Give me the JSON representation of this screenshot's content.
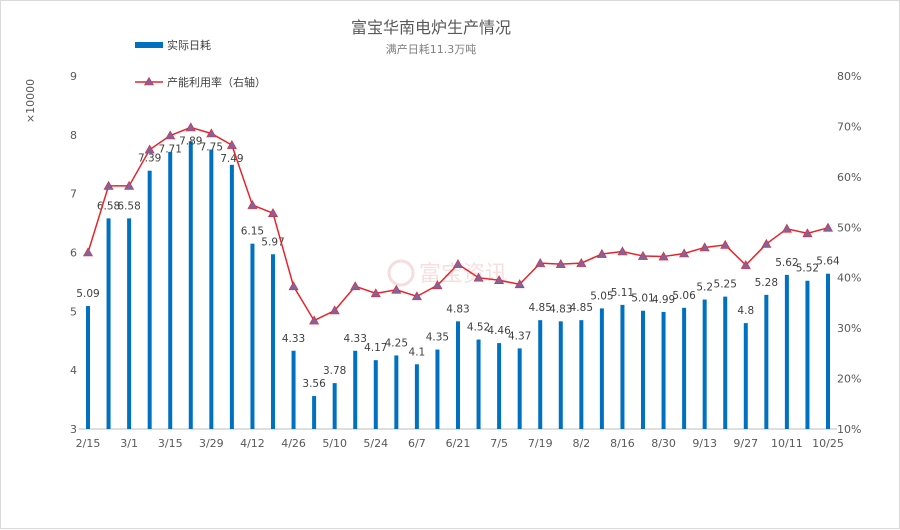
{
  "chart_data": {
    "type": "bar+line",
    "title": "富宝华南电炉生产情况",
    "subtitle": "满产日耗11.3万吨",
    "multiplier_label": "×10000",
    "watermark": "富宝资讯",
    "x_labels": [
      "2/15",
      "3/1",
      "3/15",
      "3/29",
      "4/12",
      "4/26",
      "5/10",
      "5/24",
      "6/7",
      "6/21",
      "7/5",
      "7/19",
      "8/2",
      "8/16",
      "8/30",
      "9/13",
      "9/27",
      "10/11",
      "10/25"
    ],
    "categories": [
      "2/15",
      "2/22",
      "3/1",
      "3/8",
      "3/15",
      "3/22",
      "3/29",
      "4/5",
      "4/12",
      "4/19",
      "4/26",
      "5/3",
      "5/10",
      "5/17",
      "5/24",
      "5/31",
      "6/7",
      "6/14",
      "6/21",
      "6/28",
      "7/5",
      "7/12",
      "7/19",
      "7/26",
      "8/2",
      "8/9",
      "8/16",
      "8/23",
      "8/30",
      "9/6",
      "9/13",
      "9/20",
      "9/27",
      "10/4",
      "10/11",
      "10/18",
      "10/25"
    ],
    "series": [
      {
        "name": "实际日耗",
        "axis": "left",
        "color": "#0070c0",
        "values": [
          5.09,
          6.58,
          6.58,
          7.39,
          7.71,
          7.89,
          7.75,
          7.49,
          6.15,
          5.97,
          4.33,
          3.56,
          3.78,
          4.33,
          4.17,
          4.25,
          4.1,
          4.35,
          4.83,
          4.52,
          4.46,
          4.37,
          4.85,
          4.83,
          4.85,
          5.05,
          5.11,
          5.01,
          4.99,
          5.06,
          5.2,
          5.25,
          4.8,
          5.28,
          5.62,
          5.52,
          5.64
        ],
        "labels": [
          "5.09",
          "6.58",
          "6.58",
          "7.39",
          "7.71",
          "7.89",
          "7.75",
          "7.49",
          "6.15",
          "5.97",
          "4.33",
          "3.56",
          "3.78",
          "4.33",
          "4.17",
          "4.25",
          "4.1",
          "4.35",
          "4.83",
          "4.52",
          "4.46",
          "4.37",
          "4.85",
          "4.83",
          "4.85",
          "5.05",
          "5.11",
          "5.01",
          "4.99",
          "5.06",
          "5.2",
          "5.25",
          "4.8",
          "5.28",
          "5.62",
          "5.52",
          "5.64"
        ]
      },
      {
        "name": "产能利用率（右轴）",
        "axis": "right",
        "color": "#e8242a",
        "marker_color": "#8064a2",
        "values": [
          45.0,
          58.2,
          58.2,
          65.4,
          68.2,
          69.8,
          68.6,
          66.3,
          54.4,
          52.8,
          38.3,
          31.5,
          33.5,
          38.3,
          36.9,
          37.6,
          36.3,
          38.5,
          42.7,
          40.0,
          39.5,
          38.7,
          42.9,
          42.7,
          42.9,
          44.7,
          45.2,
          44.3,
          44.2,
          44.8,
          46.0,
          46.5,
          42.5,
          46.7,
          49.7,
          48.8,
          49.9
        ]
      }
    ],
    "y_left": {
      "min": 3,
      "max": 9,
      "ticks": [
        "3",
        "4",
        "5",
        "6",
        "7",
        "8",
        "9"
      ]
    },
    "y_right": {
      "min": 10,
      "max": 80,
      "ticks": [
        "10%",
        "20%",
        "30%",
        "40%",
        "50%",
        "60%",
        "70%",
        "80%"
      ]
    },
    "legend_position": "top-left",
    "grid": false
  }
}
